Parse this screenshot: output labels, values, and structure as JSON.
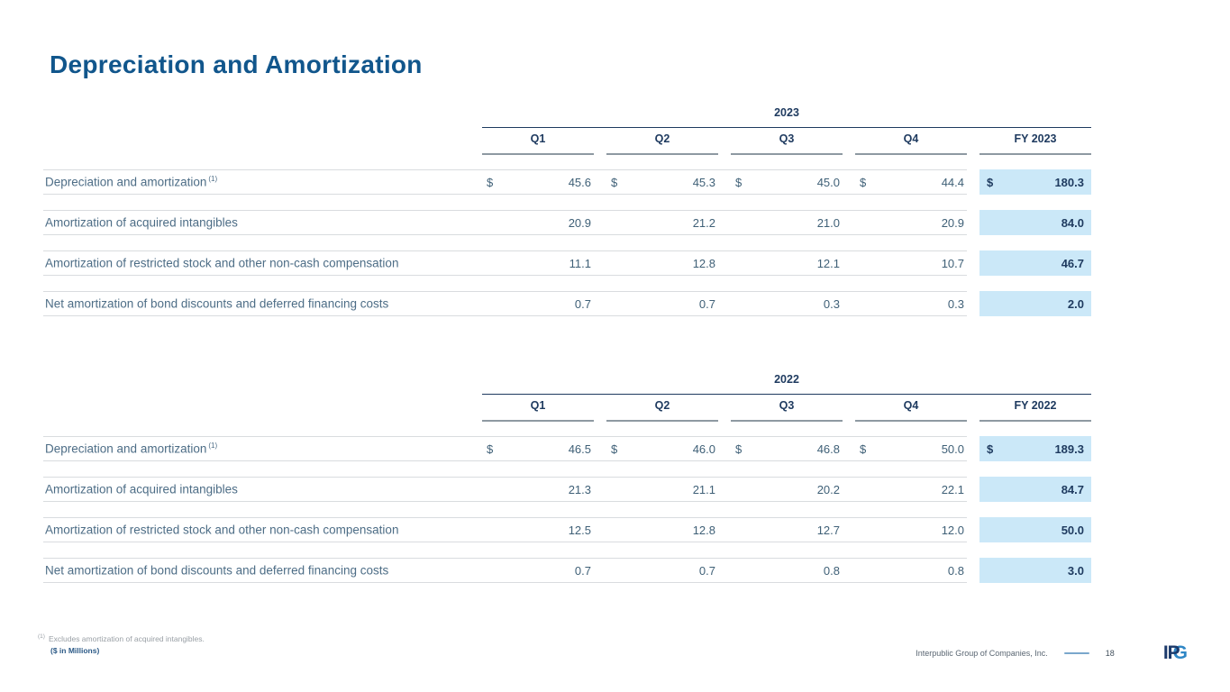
{
  "slide": {
    "title": "Depreciation and Amortization",
    "currency_symbol": "$",
    "footnote_marker": "(1)",
    "footnote_text": "Excludes amortization of acquired intangibles.",
    "units_note": "($ in Millions)",
    "footer_company": "Interpublic Group of Companies, Inc.",
    "page_number": "18",
    "logo_ip": "IP",
    "logo_g": "G"
  },
  "tables": [
    {
      "year": "2023",
      "columns": [
        "Q1",
        "Q2",
        "Q3",
        "Q4",
        "FY 2023"
      ],
      "rows": [
        {
          "label": "Depreciation and amortization",
          "superscript": "(1)",
          "dollar": true,
          "values": [
            "45.6",
            "45.3",
            "45.0",
            "44.4"
          ],
          "fy": "180.3"
        },
        {
          "label": "Amortization of acquired intangibles",
          "dollar": false,
          "values": [
            "20.9",
            "21.2",
            "21.0",
            "20.9"
          ],
          "fy": "84.0"
        },
        {
          "label": "Amortization of restricted stock and other non-cash compensation",
          "dollar": false,
          "values": [
            "11.1",
            "12.8",
            "12.1",
            "10.7"
          ],
          "fy": "46.7"
        },
        {
          "label": "Net amortization of bond discounts and deferred financing costs",
          "dollar": false,
          "values": [
            "0.7",
            "0.7",
            "0.3",
            "0.3"
          ],
          "fy": "2.0"
        }
      ]
    },
    {
      "year": "2022",
      "columns": [
        "Q1",
        "Q2",
        "Q3",
        "Q4",
        "FY 2022"
      ],
      "rows": [
        {
          "label": "Depreciation and amortization",
          "superscript": "(1)",
          "dollar": true,
          "values": [
            "46.5",
            "46.0",
            "46.8",
            "50.0"
          ],
          "fy": "189.3"
        },
        {
          "label": "Amortization of acquired intangibles",
          "dollar": false,
          "values": [
            "21.3",
            "21.1",
            "20.2",
            "22.1"
          ],
          "fy": "84.7"
        },
        {
          "label": "Amortization of restricted stock and other non-cash compensation",
          "dollar": false,
          "values": [
            "12.5",
            "12.8",
            "12.7",
            "12.0"
          ],
          "fy": "50.0"
        },
        {
          "label": "Net amortization of bond discounts and deferred financing costs",
          "dollar": false,
          "values": [
            "0.7",
            "0.7",
            "0.8",
            "0.8"
          ],
          "fy": "3.0"
        }
      ]
    }
  ],
  "colors": {
    "title_blue": "#11568c",
    "header_navy": "#1e3a5f",
    "body_text": "#4d6d86",
    "row_line": "#d9dcdf",
    "column_underline": "#8e99a2",
    "fy_highlight": "#cbe8f8",
    "footnote_gray": "#9aa0a6",
    "logo_navy": "#1c3a6b",
    "logo_blue": "#2e86c5",
    "dash_blue": "#7aa7cc"
  }
}
